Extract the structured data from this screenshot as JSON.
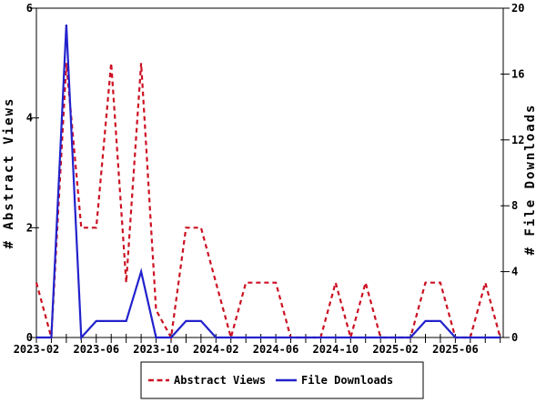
{
  "chart_data": {
    "type": "line",
    "title": "",
    "x": [
      "2023-02",
      "2023-03",
      "2023-04",
      "2023-05",
      "2023-06",
      "2023-07",
      "2023-08",
      "2023-09",
      "2023-10",
      "2023-11",
      "2023-12",
      "2024-01",
      "2024-02",
      "2024-03",
      "2024-04",
      "2024-05",
      "2024-06",
      "2024-07",
      "2024-08",
      "2024-09",
      "2024-10",
      "2024-11",
      "2024-12",
      "2025-01",
      "2025-02",
      "2025-03",
      "2025-04",
      "2025-05",
      "2025-06",
      "2025-07",
      "2025-08",
      "2025-09"
    ],
    "x_tick_labels": [
      "2023-02",
      "2023-06",
      "2023-10",
      "2024-02",
      "2024-06",
      "2024-10",
      "2025-02",
      "2025-06"
    ],
    "x_label_every": 4,
    "series": [
      {
        "name": "Abstract Views",
        "axis": "left",
        "color": "#cc1122",
        "line_style": "dashed",
        "values": [
          1,
          0,
          5,
          2,
          2,
          5,
          1,
          5,
          0.5,
          0,
          2,
          2,
          1,
          0,
          1,
          1,
          1,
          0,
          0,
          0,
          1,
          0,
          1,
          0,
          0,
          0,
          1,
          1,
          0,
          0,
          1,
          0
        ]
      },
      {
        "name": "File Downloads",
        "axis": "right",
        "color": "#2222cc",
        "line_style": "solid",
        "values": [
          0,
          0,
          19,
          0,
          1,
          1,
          1,
          4,
          0,
          0,
          1,
          1,
          0,
          0,
          0,
          0,
          0,
          0,
          0,
          0,
          0,
          0,
          0,
          0,
          0,
          0,
          1,
          1,
          0,
          0,
          0,
          0
        ]
      }
    ],
    "left_axis": {
      "label": "# Abstract Views",
      "range": [
        0,
        6
      ],
      "ticks": [
        0,
        2,
        4,
        6
      ]
    },
    "right_axis": {
      "label": "# File Downloads",
      "range": [
        0,
        20
      ],
      "ticks": [
        0,
        4,
        8,
        12,
        16,
        20
      ]
    },
    "legend": {
      "position": "bottom-center",
      "entries": [
        {
          "label": "Abstract Views",
          "color": "#cc1122",
          "style": "dashed"
        },
        {
          "label": "File Downloads",
          "color": "#2222cc",
          "style": "solid"
        }
      ]
    },
    "grid": false,
    "frame_color": "#000000",
    "background_color": "#ffffff"
  }
}
